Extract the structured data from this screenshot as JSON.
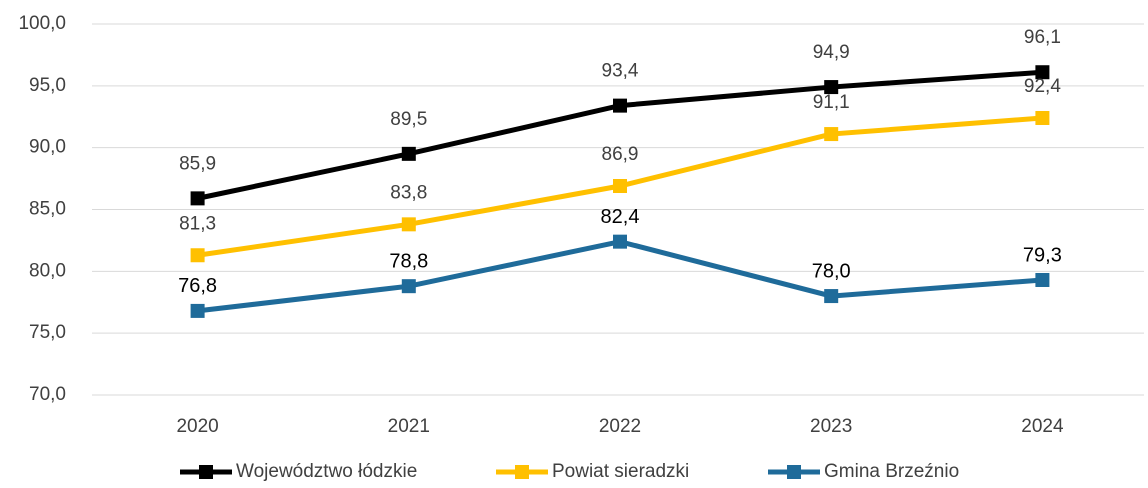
{
  "chart_data": {
    "type": "line",
    "categories": [
      "2020",
      "2021",
      "2022",
      "2023",
      "2024"
    ],
    "series": [
      {
        "name": "Województwo łódzkie",
        "color": "#000000",
        "values": [
          85.9,
          89.5,
          93.4,
          94.9,
          96.1
        ],
        "value_labels": [
          "85,9",
          "89,5",
          "93,4",
          "94,9",
          "96,1"
        ]
      },
      {
        "name": "Powiat sieradzki",
        "color": "#FFC000",
        "values": [
          81.3,
          83.8,
          86.9,
          91.1,
          92.4
        ],
        "value_labels": [
          "81,3",
          "83,8",
          "86,9",
          "91,1",
          "92,4"
        ]
      },
      {
        "name": "Gmina Brzeźnio",
        "color": "#1F6B9A",
        "values": [
          76.8,
          78.8,
          82.4,
          78.0,
          79.3
        ],
        "value_labels": [
          "76,8",
          "78,8",
          "82,4",
          "78,0",
          "79,3"
        ]
      }
    ],
    "ylim": [
      70,
      100
    ],
    "yticks": [
      {
        "value": 70,
        "label": "70,0"
      },
      {
        "value": 75,
        "label": "75,0"
      },
      {
        "value": 80,
        "label": "80,0"
      },
      {
        "value": 85,
        "label": "85,0"
      },
      {
        "value": 90,
        "label": "90,0"
      },
      {
        "value": 95,
        "label": "95,0"
      },
      {
        "value": 100,
        "label": "100,0"
      }
    ],
    "grid": true,
    "legend": "bottom"
  }
}
